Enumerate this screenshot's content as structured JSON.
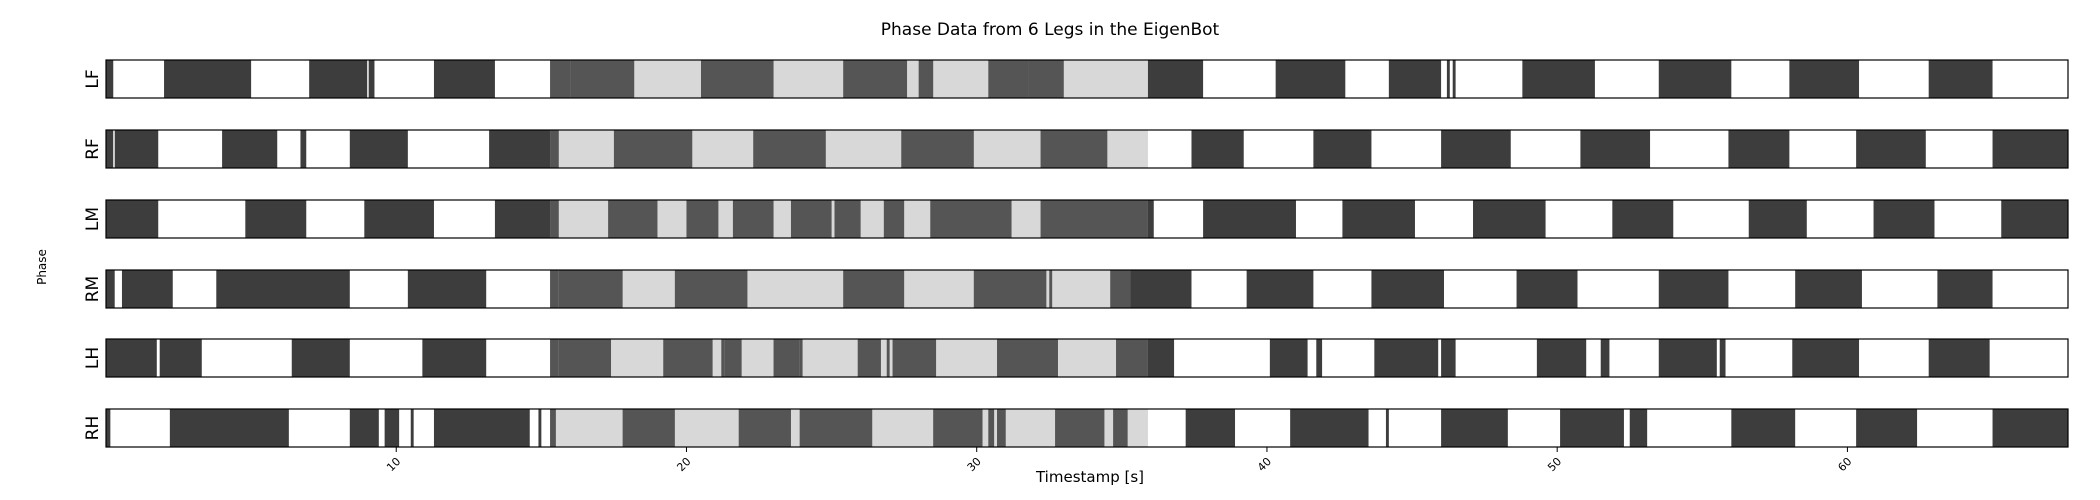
{
  "chart_data": {
    "type": "heatmap",
    "title": "Phase Data from 6 Legs in the EigenBot",
    "xlabel": "Timestamp [s]",
    "ylabel": "Phase",
    "xlim": [
      0,
      67.6
    ],
    "x_ticks": [
      10,
      20,
      30,
      40,
      50,
      60
    ],
    "colors": {
      "stance": "#3d3d3d",
      "swing": "#ffffff",
      "stance_light": "#555555",
      "swing_light": "#d8d8d8",
      "edge": "#000000"
    },
    "shaded_interval": [
      15.3,
      35.9
    ],
    "rows": [
      {
        "name": "LF",
        "segments": [
          [
            0.0,
            0.25
          ],
          [
            2.0,
            5.0
          ],
          [
            7.0,
            9.0
          ],
          [
            9.05,
            9.25
          ],
          [
            11.3,
            13.4
          ],
          [
            15.3,
            16.0
          ],
          [
            16.0,
            18.2
          ],
          [
            20.5,
            23.0
          ],
          [
            25.4,
            27.6
          ],
          [
            28.0,
            28.5
          ],
          [
            30.4,
            31.8
          ],
          [
            31.8,
            33.0
          ],
          [
            35.9,
            37.8
          ],
          [
            40.3,
            42.7
          ],
          [
            44.2,
            46.0
          ],
          [
            46.2,
            46.3
          ],
          [
            46.4,
            46.5
          ],
          [
            48.8,
            51.3
          ],
          [
            53.5,
            56.0
          ],
          [
            58.0,
            60.4
          ],
          [
            62.8,
            65.0
          ]
        ]
      },
      {
        "name": "RF",
        "segments": [
          [
            0.0,
            0.25
          ],
          [
            0.3,
            1.8
          ],
          [
            4.0,
            5.9
          ],
          [
            6.7,
            6.9
          ],
          [
            8.4,
            10.4
          ],
          [
            13.2,
            15.3
          ],
          [
            15.3,
            15.6
          ],
          [
            17.5,
            20.2
          ],
          [
            22.3,
            24.8
          ],
          [
            27.4,
            29.9
          ],
          [
            32.2,
            34.5
          ],
          [
            37.4,
            39.2
          ],
          [
            41.6,
            43.6
          ],
          [
            46.0,
            48.4
          ],
          [
            50.8,
            53.2
          ],
          [
            55.9,
            58.0
          ],
          [
            60.3,
            62.7
          ],
          [
            65.0,
            67.6
          ]
        ]
      },
      {
        "name": "LM",
        "segments": [
          [
            0.0,
            1.8
          ],
          [
            4.8,
            6.9
          ],
          [
            8.9,
            11.3
          ],
          [
            13.4,
            15.3
          ],
          [
            15.3,
            15.6
          ],
          [
            17.3,
            19.0
          ],
          [
            20.0,
            21.1
          ],
          [
            21.6,
            23.0
          ],
          [
            23.6,
            25.0
          ],
          [
            25.1,
            26.0
          ],
          [
            26.8,
            27.5
          ],
          [
            28.4,
            31.2
          ],
          [
            32.2,
            35.9
          ],
          [
            35.9,
            36.1
          ],
          [
            37.8,
            41.0
          ],
          [
            42.6,
            45.1
          ],
          [
            47.1,
            49.6
          ],
          [
            51.9,
            54.0
          ],
          [
            56.6,
            58.6
          ],
          [
            60.9,
            63.0
          ],
          [
            65.3,
            67.6
          ]
        ]
      },
      {
        "name": "RM",
        "segments": [
          [
            0.0,
            0.3
          ],
          [
            0.55,
            2.3
          ],
          [
            3.8,
            8.4
          ],
          [
            10.4,
            13.1
          ],
          [
            15.3,
            15.6
          ],
          [
            15.6,
            17.8
          ],
          [
            19.6,
            22.1
          ],
          [
            25.4,
            27.5
          ],
          [
            29.9,
            32.4
          ],
          [
            32.5,
            32.6
          ],
          [
            34.6,
            35.3
          ],
          [
            35.3,
            37.4
          ],
          [
            39.3,
            41.6
          ],
          [
            43.6,
            46.1
          ],
          [
            48.6,
            50.7
          ],
          [
            53.5,
            55.9
          ],
          [
            58.2,
            60.5
          ],
          [
            63.1,
            65.0
          ]
        ]
      },
      {
        "name": "LH",
        "segments": [
          [
            0.0,
            1.75
          ],
          [
            1.85,
            3.3
          ],
          [
            6.4,
            8.4
          ],
          [
            10.9,
            13.1
          ],
          [
            15.3,
            15.6
          ],
          [
            15.6,
            17.4
          ],
          [
            19.2,
            20.9
          ],
          [
            21.2,
            21.3
          ],
          [
            21.3,
            21.9
          ],
          [
            23.0,
            23.9
          ],
          [
            23.9,
            24.0
          ],
          [
            25.9,
            26.7
          ],
          [
            26.9,
            27.0
          ],
          [
            27.1,
            28.6
          ],
          [
            30.7,
            32.8
          ],
          [
            34.8,
            35.9
          ],
          [
            35.9,
            36.8
          ],
          [
            40.1,
            41.4
          ],
          [
            41.7,
            41.9
          ],
          [
            43.7,
            45.9
          ],
          [
            46.0,
            46.5
          ],
          [
            49.3,
            51.0
          ],
          [
            51.5,
            51.8
          ],
          [
            53.5,
            55.5
          ],
          [
            55.6,
            55.8
          ],
          [
            58.1,
            60.4
          ],
          [
            62.8,
            64.9
          ]
        ]
      },
      {
        "name": "RH",
        "segments": [
          [
            0.0,
            0.15
          ],
          [
            2.2,
            6.3
          ],
          [
            8.4,
            9.4
          ],
          [
            9.6,
            10.1
          ],
          [
            10.5,
            10.6
          ],
          [
            11.3,
            14.6
          ],
          [
            14.9,
            15.0
          ],
          [
            15.3,
            15.5
          ],
          [
            17.8,
            19.6
          ],
          [
            21.8,
            23.6
          ],
          [
            23.9,
            26.4
          ],
          [
            28.5,
            30.2
          ],
          [
            30.4,
            30.6
          ],
          [
            30.7,
            31.0
          ],
          [
            32.7,
            34.4
          ],
          [
            34.7,
            35.2
          ],
          [
            37.2,
            38.9
          ],
          [
            40.8,
            43.5
          ],
          [
            44.1,
            44.2
          ],
          [
            46.0,
            48.3
          ],
          [
            50.1,
            52.3
          ],
          [
            52.5,
            53.1
          ],
          [
            56.0,
            58.2
          ],
          [
            60.3,
            62.4
          ],
          [
            65.0,
            67.6
          ]
        ]
      }
    ]
  }
}
